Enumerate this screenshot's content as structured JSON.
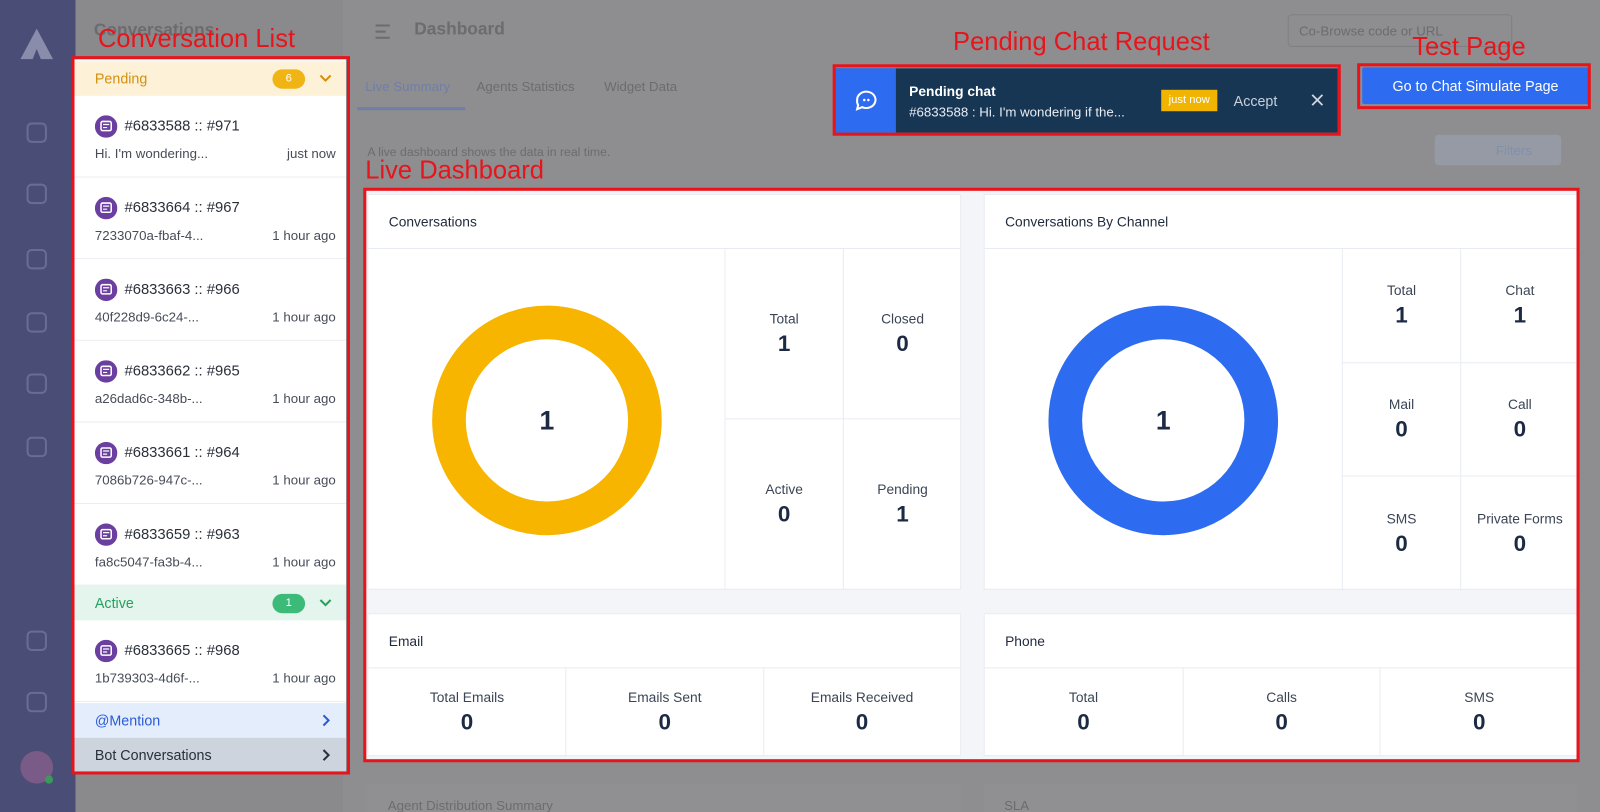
{
  "annotations": {
    "conversation_list": "Conversation List",
    "pending_chat_request": "Pending Chat Request",
    "test_page": "Test Page",
    "live_dashboard": "Live Dashboard"
  },
  "background": {
    "sidebar_title": "Conversations",
    "header_title": "Dashboard",
    "tabs": [
      "Live Summary",
      "Agents Statistics",
      "Widget Data"
    ],
    "description": "A live dashboard shows the data in real time.",
    "filters": "Filters",
    "cobrowse": "Co-Browse code or URL",
    "bottom_cards": [
      "Agent Distribution Summary",
      "SLA"
    ]
  },
  "conversation_list": {
    "pending": {
      "label": "Pending",
      "count": 6,
      "items": [
        {
          "id": "#6833588 :: #971",
          "preview": "Hi. I'm wondering...",
          "time": "just now"
        },
        {
          "id": "#6833664 :: #967",
          "preview": "7233070a-fbaf-4...",
          "time": "1 hour ago"
        },
        {
          "id": "#6833663 :: #966",
          "preview": "40f228d9-6c24-...",
          "time": "1 hour ago"
        },
        {
          "id": "#6833662 :: #965",
          "preview": "a26dad6c-348b-...",
          "time": "1 hour ago"
        },
        {
          "id": "#6833661 :: #964",
          "preview": "7086b726-947c-...",
          "time": "1 hour ago"
        },
        {
          "id": "#6833659 :: #963",
          "preview": "fa8c5047-fa3b-4...",
          "time": "1 hour ago"
        }
      ]
    },
    "active": {
      "label": "Active",
      "count": 1,
      "items": [
        {
          "id": "#6833665 :: #968",
          "preview": "1b739303-4d6f-...",
          "time": "1 hour ago"
        }
      ]
    },
    "mention": "@Mention",
    "bot": "Bot Conversations"
  },
  "notification": {
    "title": "Pending chat",
    "message": "#6833588 : Hi. I'm wondering if the...",
    "badge": "just now",
    "accept": "Accept"
  },
  "test_button": "Go to Chat Simulate Page",
  "dashboard": {
    "conversations": {
      "title": "Conversations",
      "donut_value": 1,
      "stats": [
        {
          "label": "Total",
          "value": 1
        },
        {
          "label": "Closed",
          "value": 0
        },
        {
          "label": "Active",
          "value": 0
        },
        {
          "label": "Pending",
          "value": 1
        }
      ]
    },
    "by_channel": {
      "title": "Conversations By Channel",
      "donut_value": 1,
      "stats": [
        {
          "label": "Total",
          "value": 1
        },
        {
          "label": "Chat",
          "value": 1
        },
        {
          "label": "Mail",
          "value": 0
        },
        {
          "label": "Call",
          "value": 0
        },
        {
          "label": "SMS",
          "value": 0
        },
        {
          "label": "Private Forms",
          "value": 0
        }
      ]
    },
    "email": {
      "title": "Email",
      "stats": [
        {
          "label": "Total Emails",
          "value": 0
        },
        {
          "label": "Emails Sent",
          "value": 0
        },
        {
          "label": "Emails Received",
          "value": 0
        }
      ]
    },
    "phone": {
      "title": "Phone",
      "stats": [
        {
          "label": "Total",
          "value": 0
        },
        {
          "label": "Calls",
          "value": 0
        },
        {
          "label": "SMS",
          "value": 0
        }
      ]
    }
  }
}
